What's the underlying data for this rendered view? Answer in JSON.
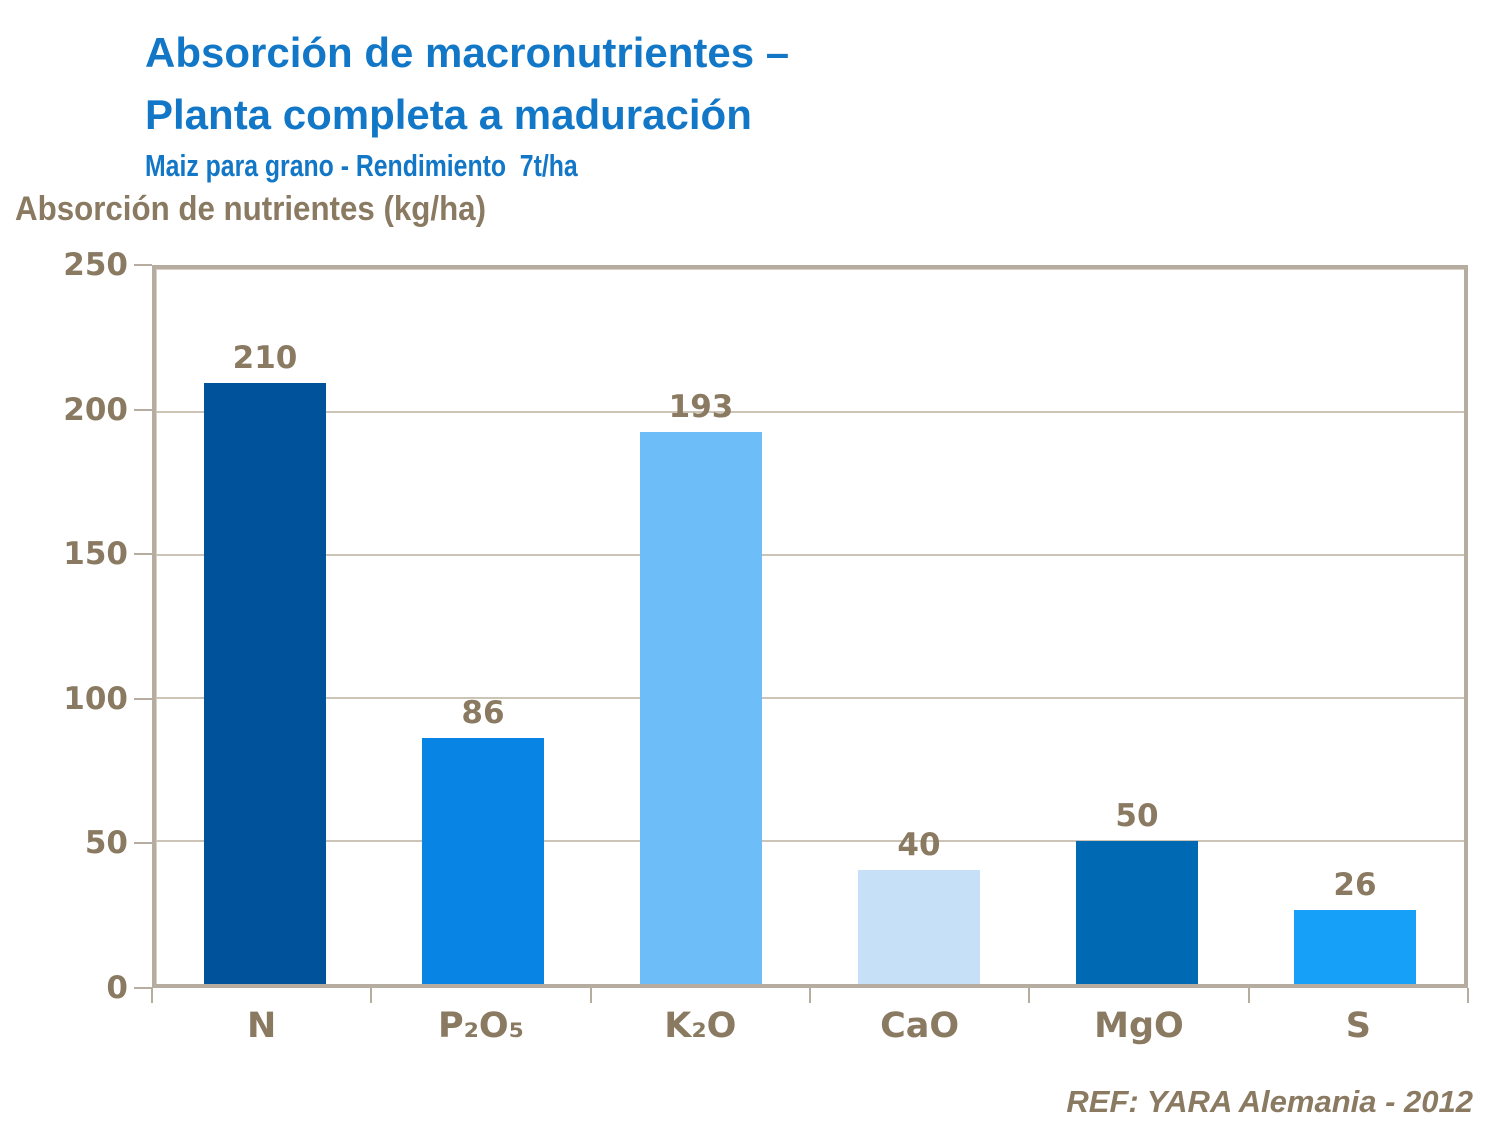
{
  "theme": {
    "accent_blue": "#1277C7",
    "text_brown": "#8A7A62",
    "grid": "#CCC4B6",
    "frame": "#B7ACA0",
    "background": "#FFFFFF"
  },
  "slide": {
    "title_line1": "Absorción de macronutrientes –",
    "title_line2": "Planta completa a maduración",
    "subtitle": "Maiz para grano - Rendimiento  7t/ha",
    "footer_ref": "REF: YARA Alemania - 2012"
  },
  "chart_data": {
    "type": "bar",
    "title": "Absorción de nutrientes (kg/ha)",
    "xlabel": "",
    "ylabel": "Absorción de nutrientes (kg/ha)",
    "categories": [
      "N",
      "P₂O₅",
      "K₂O",
      "CaO",
      "MgO",
      "S"
    ],
    "values": [
      210,
      86,
      193,
      40,
      50,
      26
    ],
    "bar_colors": [
      "#00539B",
      "#0784E4",
      "#6CBDF8",
      "#C6E0F7",
      "#0069B3",
      "#16A0F8"
    ],
    "ylim": [
      0,
      250
    ],
    "yticks": [
      0,
      50,
      100,
      150,
      200,
      250
    ],
    "grid": true,
    "legend_position": "none"
  }
}
